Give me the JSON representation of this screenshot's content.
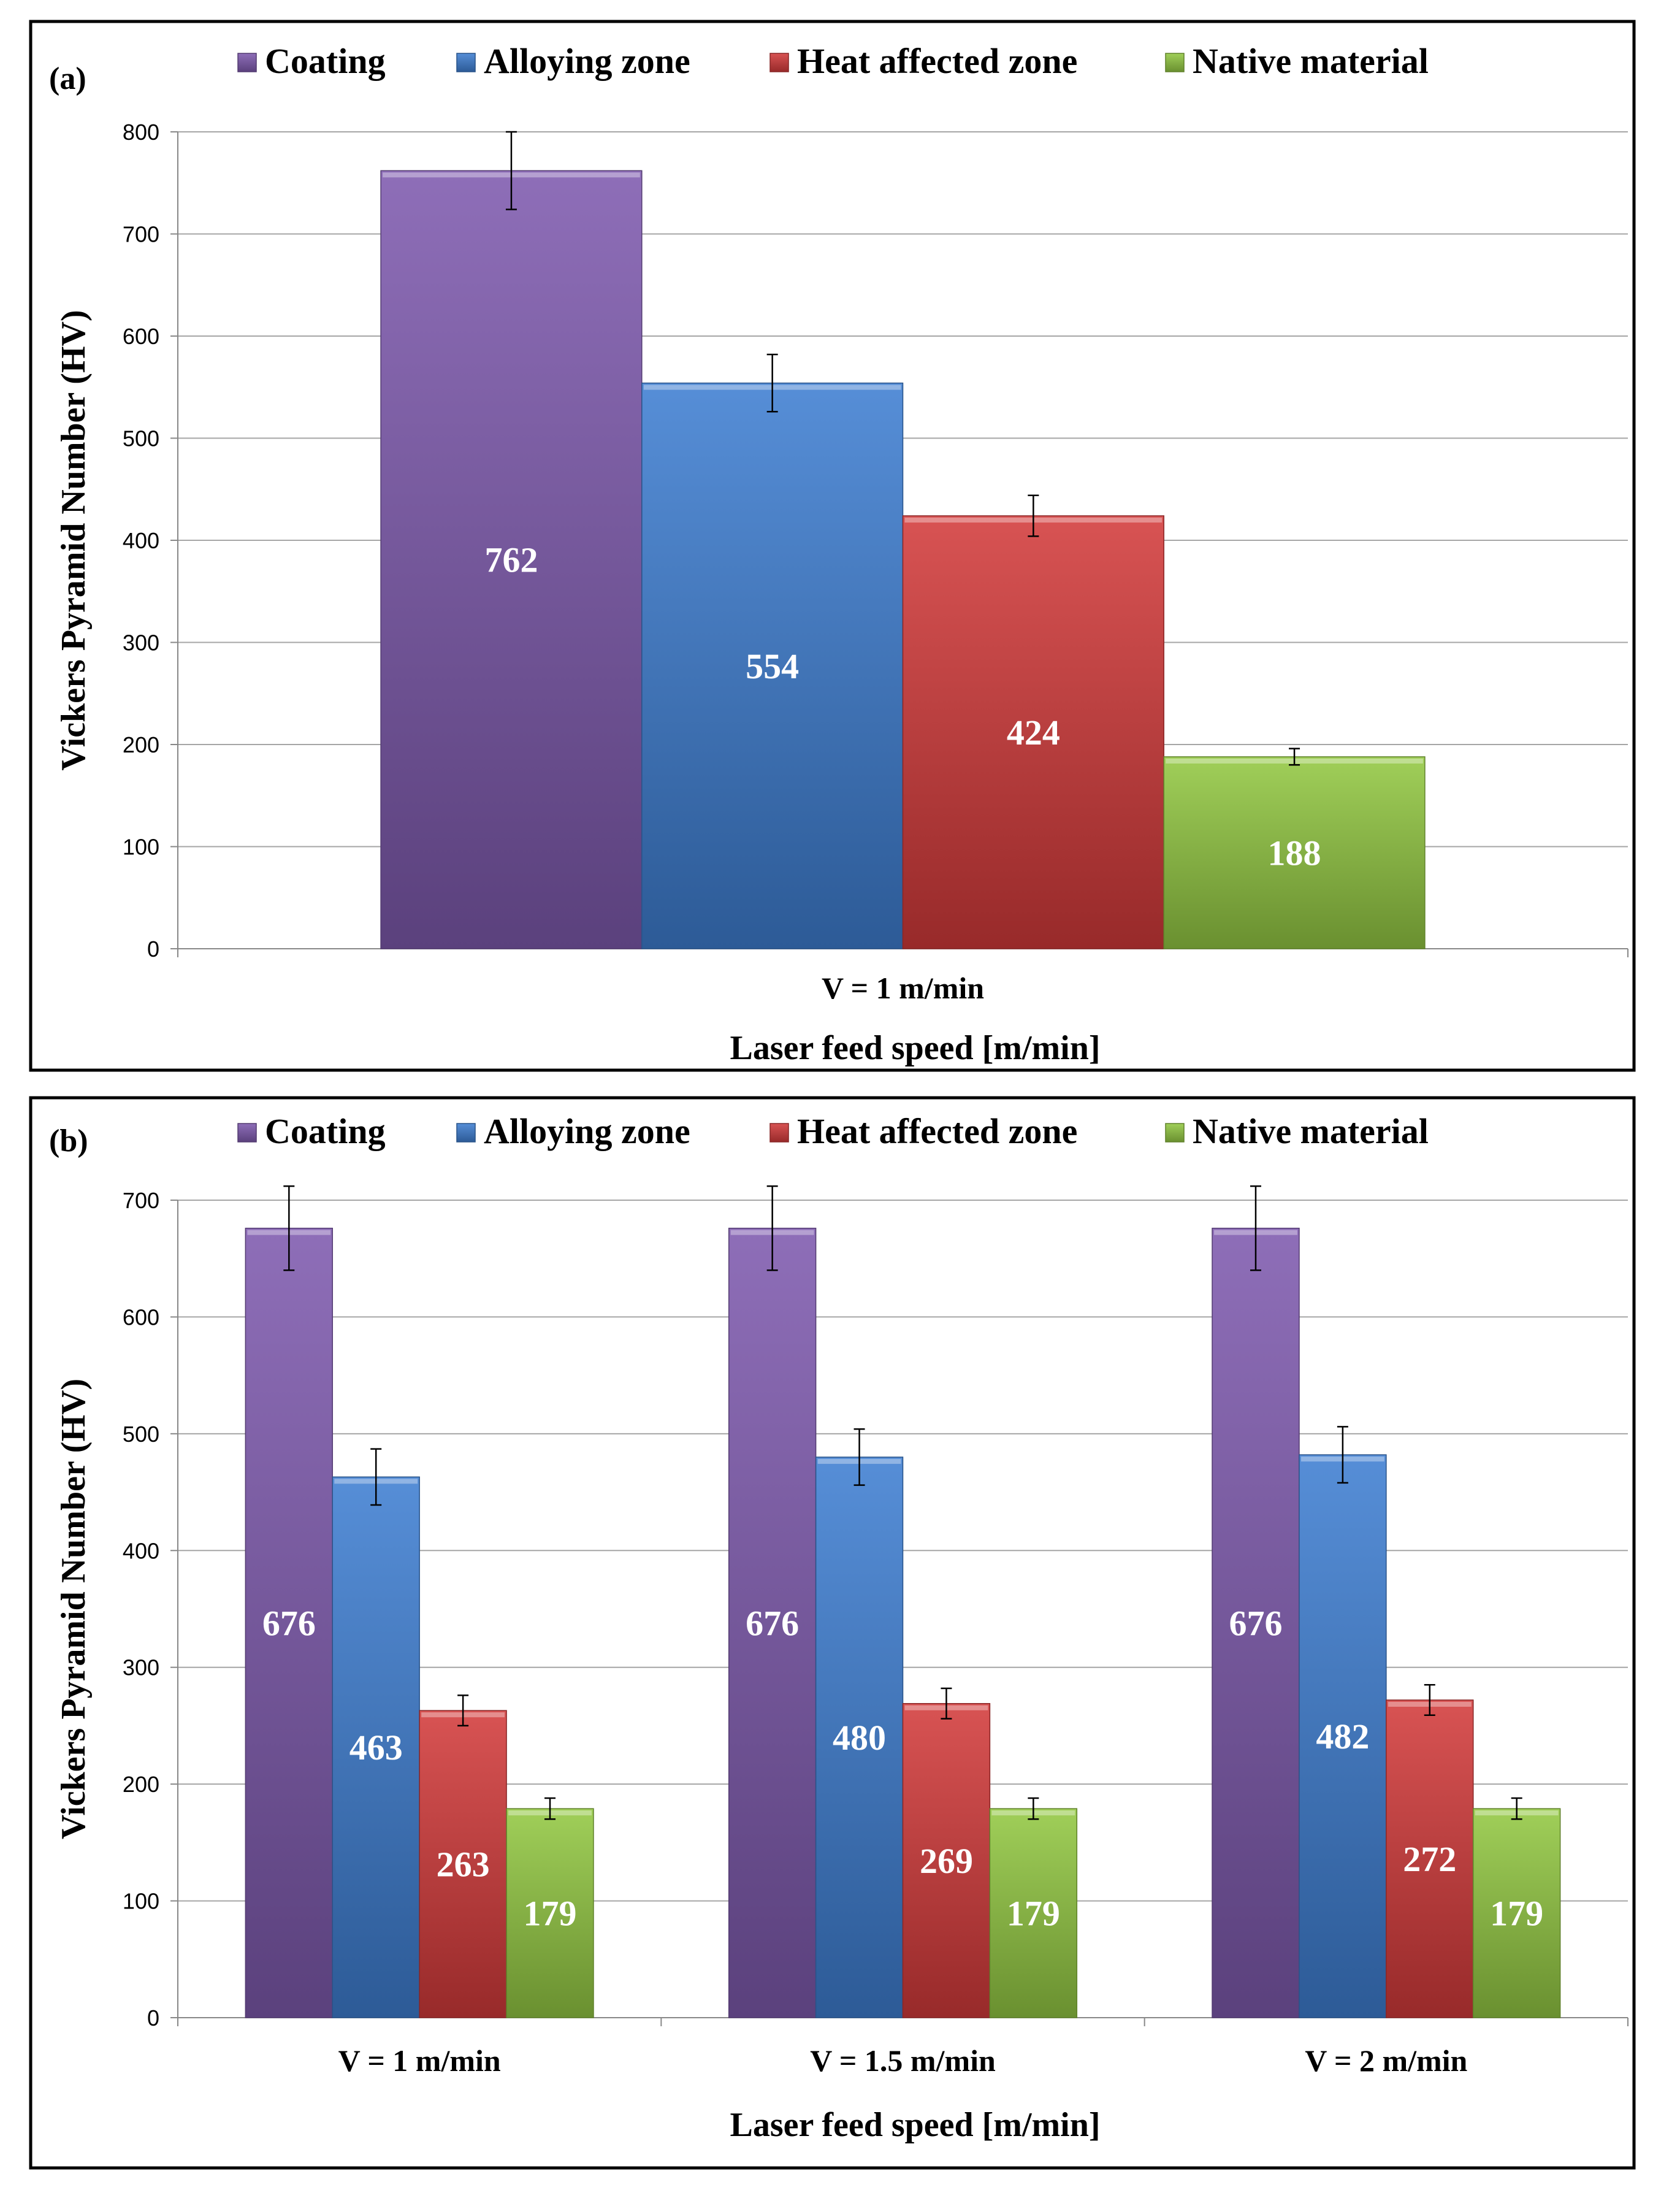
{
  "chart_data": [
    {
      "type": "bar",
      "panel_label": "(a)",
      "legend_position": "top",
      "categories": [
        "V = 1 m/min"
      ],
      "series": [
        {
          "name": "Coating",
          "color": "#7F5AAE",
          "values": [
            762
          ],
          "errors": [
            38
          ]
        },
        {
          "name": "Alloying zone",
          "color": "#3F7FD2",
          "values": [
            554
          ],
          "errors": [
            28
          ]
        },
        {
          "name": "Heat affected zone",
          "color": "#D33B3B",
          "values": [
            424
          ],
          "errors": [
            20
          ]
        },
        {
          "name": "Native material",
          "color": "#93C842",
          "values": [
            188
          ],
          "errors": [
            8
          ]
        }
      ],
      "xlabel": "Laser feed speed [m/min]",
      "ylabel": "Vickers Pyramid Number (HV)",
      "ylim": [
        0,
        800
      ],
      "yticks": [
        0,
        100,
        200,
        300,
        400,
        500,
        600,
        700,
        800
      ],
      "grid": true
    },
    {
      "type": "bar",
      "panel_label": "(b)",
      "legend_position": "top",
      "categories": [
        "V = 1 m/min",
        "V = 1.5 m/min",
        "V = 2 m/min"
      ],
      "series": [
        {
          "name": "Coating",
          "color": "#7F5AAE",
          "values": [
            676,
            676,
            676
          ],
          "errors": [
            36,
            36,
            36
          ]
        },
        {
          "name": "Alloying zone",
          "color": "#3F7FD2",
          "values": [
            463,
            480,
            482
          ],
          "errors": [
            24,
            24,
            24
          ]
        },
        {
          "name": "Heat affected zone",
          "color": "#D33B3B",
          "values": [
            263,
            269,
            272
          ],
          "errors": [
            13,
            13,
            13
          ]
        },
        {
          "name": "Native material",
          "color": "#93C842",
          "values": [
            179,
            179,
            179
          ],
          "errors": [
            9,
            9,
            9
          ]
        }
      ],
      "xlabel": "Laser feed speed [m/min]",
      "ylabel": "Vickers Pyramid Number (HV)",
      "ylim": [
        0,
        700
      ],
      "yticks": [
        0,
        100,
        200,
        300,
        400,
        500,
        600,
        700
      ],
      "grid": true
    }
  ]
}
